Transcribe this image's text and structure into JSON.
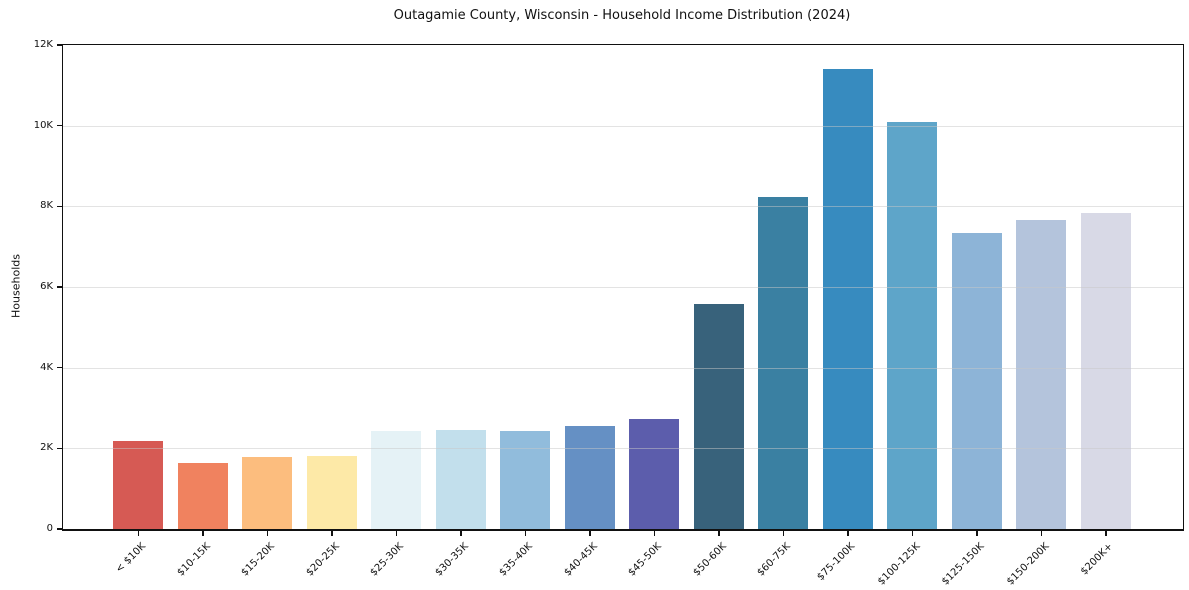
{
  "chart_data": {
    "type": "bar",
    "title": "Outagamie County, Wisconsin - Household Income Distribution (2024)",
    "xlabel": "",
    "ylabel": "Households",
    "categories": [
      "< $10K",
      "$10-15K",
      "$15-20K",
      "$20-25K",
      "$25-30K",
      "$30-35K",
      "$35-40K",
      "$40-45K",
      "$45-50K",
      "$50-60K",
      "$60-75K",
      "$75-100K",
      "$100-125K",
      "$125-150K",
      "$150-200K",
      "$200K+"
    ],
    "values": [
      2170,
      1630,
      1790,
      1800,
      2440,
      2460,
      2430,
      2550,
      2740,
      5580,
      8240,
      11400,
      10090,
      7350,
      7670,
      7840
    ],
    "bar_colors": [
      "#d65a54",
      "#f0825f",
      "#fcbd7e",
      "#fde9a7",
      "#e5f2f6",
      "#c2dfec",
      "#91bcdc",
      "#6590c4",
      "#5c5dac",
      "#38627b",
      "#3a80a2",
      "#378bbf",
      "#5ea5c9",
      "#8db4d7",
      "#b4c4dc",
      "#d8d9e6"
    ],
    "ylim": [
      0,
      12000
    ],
    "ytick_values": [
      0,
      2000,
      4000,
      6000,
      8000,
      10000,
      12000
    ],
    "ytick_labels": [
      "0",
      "2K",
      "4K",
      "6K",
      "8K",
      "10K",
      "12K"
    ],
    "grid": "horizontal",
    "legend": "none",
    "plot_background": "#ffffff",
    "figure_background": "#ffffff",
    "axis_color": "#111111",
    "grid_color": "#e6e6e6",
    "text_color": "#111111"
  }
}
